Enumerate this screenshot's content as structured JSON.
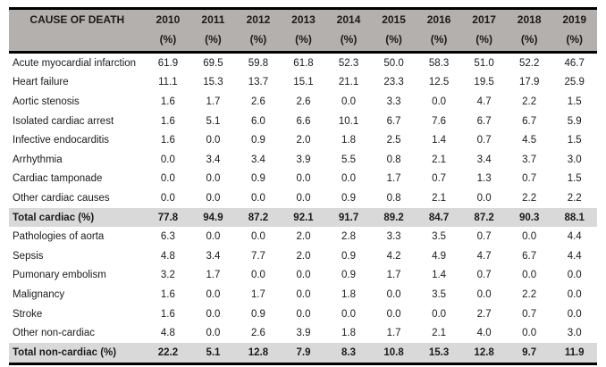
{
  "table": {
    "header": {
      "cause_label": "CAUSE OF DEATH",
      "unit": "(%)",
      "years": [
        "2010",
        "2011",
        "2012",
        "2013",
        "2014",
        "2015",
        "2016",
        "2017",
        "2018",
        "2019"
      ]
    },
    "rows": [
      {
        "label": "Acute myocardial infarction",
        "type": "data",
        "values": [
          "61.9",
          "69.5",
          "59.8",
          "61.8",
          "52.3",
          "50.0",
          "58.3",
          "51.0",
          "52.2",
          "46.7"
        ]
      },
      {
        "label": "Heart failure",
        "type": "data",
        "values": [
          "11.1",
          "15.3",
          "13.7",
          "15.1",
          "21.1",
          "23.3",
          "12.5",
          "19.5",
          "17.9",
          "25.9"
        ]
      },
      {
        "label": "Aortic stenosis",
        "type": "data",
        "values": [
          "1.6",
          "1.7",
          "2.6",
          "2.6",
          "0.0",
          "3.3",
          "0.0",
          "4.7",
          "2.2",
          "1.5"
        ]
      },
      {
        "label": "Isolated cardiac arrest",
        "type": "data",
        "values": [
          "1.6",
          "5.1",
          "6.0",
          "6.6",
          "10.1",
          "6.7",
          "7.6",
          "6.7",
          "6.7",
          "5.9"
        ]
      },
      {
        "label": "Infective endocarditis",
        "type": "data",
        "values": [
          "1.6",
          "0.0",
          "0.9",
          "2.0",
          "1.8",
          "2.5",
          "1.4",
          "0.7",
          "4.5",
          "1.5"
        ]
      },
      {
        "label": "Arrhythmia",
        "type": "data",
        "values": [
          "0.0",
          "3.4",
          "3.4",
          "3.9",
          "5.5",
          "0.8",
          "2.1",
          "3.4",
          "3.7",
          "3.0"
        ]
      },
      {
        "label": "Cardiac tamponade",
        "type": "data",
        "values": [
          "0.0",
          "0.0",
          "0.9",
          "0.0",
          "0.0",
          "1.7",
          "0.7",
          "1.3",
          "0.7",
          "1.5"
        ]
      },
      {
        "label": "Other cardiac causes",
        "type": "data",
        "values": [
          "0.0",
          "0.0",
          "0.0",
          "0.0",
          "0.9",
          "0.8",
          "2.1",
          "0.0",
          "2.2",
          "2.2"
        ]
      },
      {
        "label": "Total cardiac (%)",
        "type": "total",
        "values": [
          "77.8",
          "94.9",
          "87.2",
          "92.1",
          "91.7",
          "89.2",
          "84.7",
          "87.2",
          "90.3",
          "88.1"
        ]
      },
      {
        "label": "Pathologies of aorta",
        "type": "data",
        "values": [
          "6.3",
          "0.0",
          "0.0",
          "2.0",
          "2.8",
          "3.3",
          "3.5",
          "0.7",
          "0.0",
          "4.4"
        ]
      },
      {
        "label": "Sepsis",
        "type": "data",
        "values": [
          "4.8",
          "3.4",
          "7.7",
          "2.0",
          "0.9",
          "4.2",
          "4.9",
          "4.7",
          "6.7",
          "4.4"
        ]
      },
      {
        "label": "Pumonary embolism",
        "type": "data",
        "values": [
          "3.2",
          "1.7",
          "0.0",
          "0.0",
          "0.9",
          "1.7",
          "1.4",
          "0.7",
          "0.0",
          "0.0"
        ]
      },
      {
        "label": "Malignancy",
        "type": "data",
        "values": [
          "1.6",
          "0.0",
          "1.7",
          "0.0",
          "1.8",
          "0.0",
          "3.5",
          "0.0",
          "2.2",
          "0.0"
        ]
      },
      {
        "label": "Stroke",
        "type": "data",
        "values": [
          "1.6",
          "0.0",
          "0.9",
          "0.0",
          "0.0",
          "0.0",
          "0.0",
          "2.7",
          "0.7",
          "0.0"
        ]
      },
      {
        "label": "Other non-cardiac",
        "type": "data",
        "values": [
          "4.8",
          "0.0",
          "2.6",
          "3.9",
          "1.8",
          "1.7",
          "2.1",
          "4.0",
          "0.0",
          "3.0"
        ]
      },
      {
        "label": "Total non-cardiac (%)",
        "type": "total",
        "values": [
          "22.2",
          "5.1",
          "12.8",
          "7.9",
          "8.3",
          "10.8",
          "15.3",
          "12.8",
          "9.7",
          "11.9"
        ]
      }
    ]
  },
  "colors": {
    "header_bg": "#b4b0ad",
    "total_row_bg": "#d9d9d9",
    "border": "#000000"
  }
}
